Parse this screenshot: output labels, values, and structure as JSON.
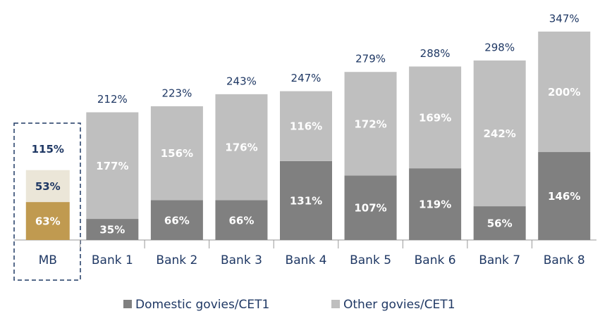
{
  "chart_data": {
    "type": "stacked_bar",
    "categories": [
      "MB",
      "Bank 1",
      "Bank 2",
      "Bank 3",
      "Bank 4",
      "Bank 5",
      "Bank 6",
      "Bank 7",
      "Bank 8"
    ],
    "series": [
      {
        "name": "Domestic govies/CET1",
        "color": "#808080",
        "highlight_color": "#c09a50",
        "label_color": "#ffffff",
        "highlight_label_color": "#ffffff",
        "values": [
          63,
          35,
          66,
          66,
          131,
          107,
          119,
          56,
          146
        ],
        "value_labels": [
          "63%",
          "35%",
          "66%",
          "66%",
          "131%",
          "107%",
          "119%",
          "56%",
          "146%"
        ]
      },
      {
        "name": "Other govies/CET1",
        "color": "#bfbfbf",
        "highlight_color": "#ebe6d8",
        "label_color": "#ffffff",
        "highlight_label_color": "#1f3864",
        "values": [
          53,
          177,
          156,
          176,
          116,
          172,
          169,
          242,
          200
        ],
        "value_labels": [
          "53%",
          "177%",
          "156%",
          "176%",
          "116%",
          "172%",
          "169%",
          "242%",
          "200%"
        ]
      }
    ],
    "totals": [
      115,
      212,
      223,
      243,
      247,
      279,
      288,
      298,
      347
    ],
    "total_labels": [
      "115%",
      "212%",
      "223%",
      "243%",
      "247%",
      "279%",
      "288%",
      "298%",
      "347%"
    ],
    "highlight_index": 0,
    "legend": "bottom"
  }
}
